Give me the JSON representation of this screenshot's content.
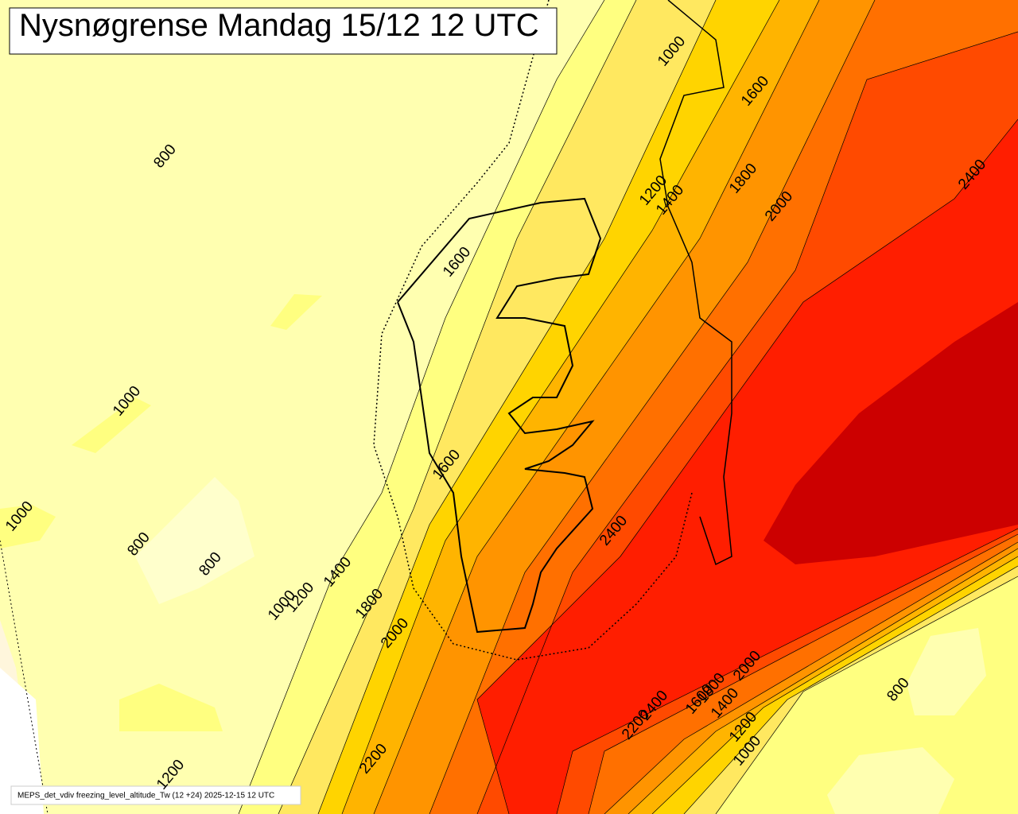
{
  "title": "Nysnøgrense Mandag 15/12 12 UTC",
  "footer": "MEPS_det_vdiv freezing_level_altitude_Tw (12 +24) 2025-12-15 12 UTC",
  "contour_labels": [
    800,
    1000,
    1600,
    1800,
    2000,
    1200,
    1400,
    2400,
    1600,
    1000,
    1600,
    1000,
    800,
    800,
    1400,
    1000,
    1200,
    1800,
    2000,
    2400,
    2000,
    1800,
    1600,
    1400,
    2400,
    2200,
    1200,
    1000,
    800,
    2200,
    1200
  ]
}
